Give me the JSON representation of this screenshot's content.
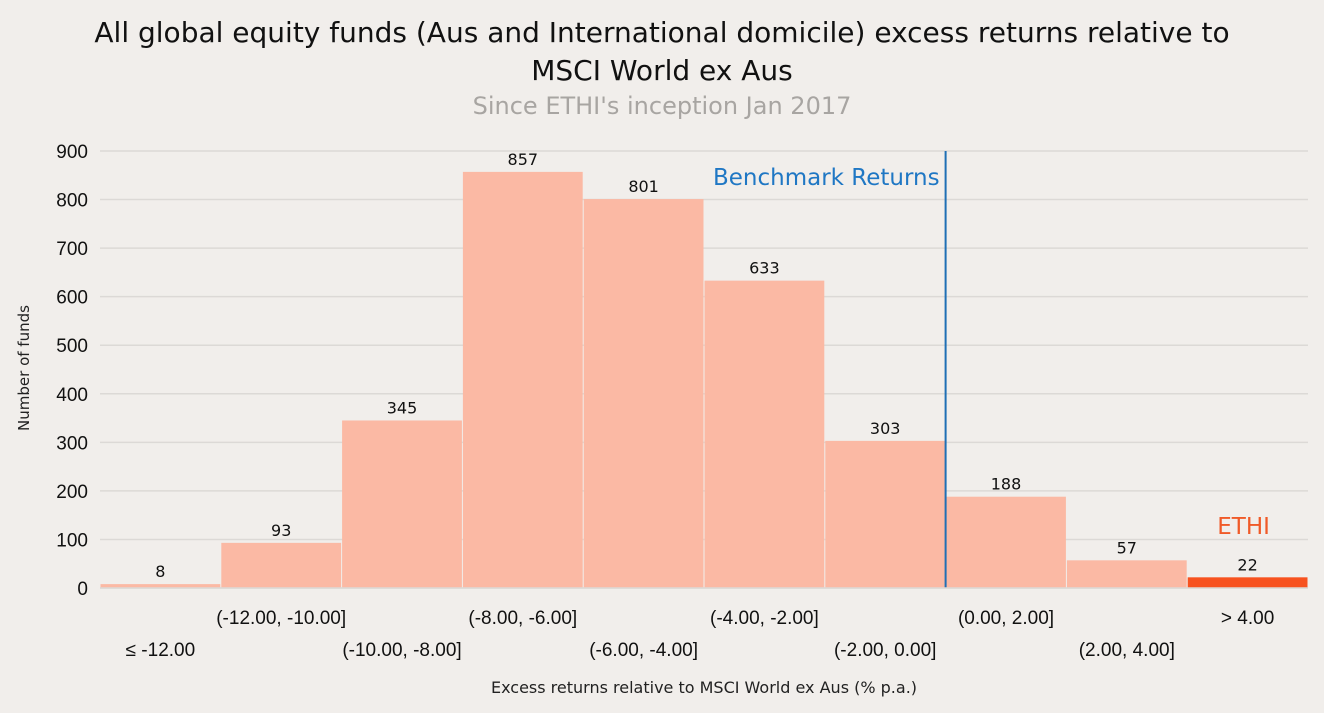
{
  "chart_data": {
    "type": "bar",
    "title": "All global equity funds (Aus and International domicile) excess returns relative to MSCI World ex Aus",
    "subtitle": "Since ETHI's inception Jan 2017",
    "xlabel": "Excess returns relative to MSCI World ex Aus (% p.a.)",
    "ylabel": "Number of funds",
    "ylim": [
      0,
      900
    ],
    "yticks": [
      0,
      100,
      200,
      300,
      400,
      500,
      600,
      700,
      800,
      900
    ],
    "grid": true,
    "categories": [
      "≤ -12.00",
      "(-12.00, -10.00]",
      "(-10.00, -8.00]",
      "(-8.00, -6.00]",
      "(-6.00, -4.00]",
      "(-4.00, -2.00]",
      "(-2.00, 0.00]",
      "(0.00, 2.00]",
      "(2.00, 4.00]",
      "> 4.00"
    ],
    "values": [
      8,
      93,
      345,
      857,
      801,
      633,
      303,
      188,
      57,
      22
    ],
    "colors": {
      "bar": "#fbb9a4",
      "highlight": "#f7521f",
      "benchmark_line": "#1f6fb5",
      "benchmark_text": "#1f77c4",
      "ethi_text": "#f05a28",
      "grid": "#dcd9d6"
    },
    "highlight_index": 9,
    "annotations": {
      "benchmark": "Benchmark Returns",
      "highlight": "ETHI"
    }
  }
}
